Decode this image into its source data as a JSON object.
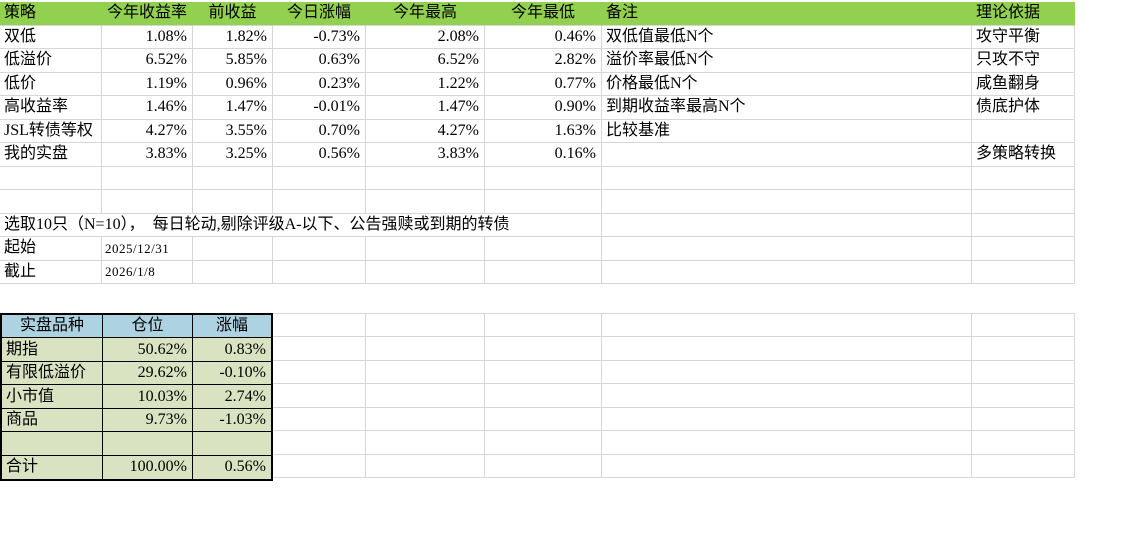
{
  "colors": {
    "header_green": "#92D050",
    "header_blue": "#ADD3E2",
    "body_green": "#D9E2C1",
    "gridline": "#D6D6D6"
  },
  "strategy_table": {
    "headers": [
      "策略",
      "今年收益率",
      "前收益",
      "今日涨幅",
      "今年最高",
      "今年最低",
      "备注",
      "理论依据"
    ],
    "rows": [
      [
        "双低",
        "1.08%",
        "1.82%",
        "-0.73%",
        "2.08%",
        "0.46%",
        "双低值最低N个",
        "攻守平衡"
      ],
      [
        "低溢价",
        "6.52%",
        "5.85%",
        "0.63%",
        "6.52%",
        "2.82%",
        "溢价率最低N个",
        "只攻不守"
      ],
      [
        "低价",
        "1.19%",
        "0.96%",
        "0.23%",
        "1.22%",
        "0.77%",
        "价格最低N个",
        "咸鱼翻身"
      ],
      [
        "高收益率",
        "1.46%",
        "1.47%",
        "-0.01%",
        "1.47%",
        "0.90%",
        "到期收益率最高N个",
        "债底护体"
      ],
      [
        "JSL转债等权",
        "4.27%",
        "3.55%",
        "0.70%",
        "4.27%",
        "1.63%",
        "比较基准",
        ""
      ],
      [
        "我的实盘",
        "3.83%",
        "3.25%",
        "0.56%",
        "3.83%",
        "0.16%",
        "",
        "多策略转换"
      ]
    ]
  },
  "selection_note": "选取10只（N=10），　每日轮动,剔除评级A-以下、公告强赎或到期的转债",
  "period": {
    "rows": [
      [
        "起始",
        "2025/12/31"
      ],
      [
        "截止",
        "2026/1/8"
      ]
    ]
  },
  "holdings_table": {
    "headers": [
      "实盘品种",
      "仓位",
      "涨幅"
    ],
    "rows": [
      [
        "期指",
        "50.62%",
        "0.83%"
      ],
      [
        "有限低溢价",
        "29.62%",
        "-0.10%"
      ],
      [
        "小市值",
        "10.03%",
        "2.74%"
      ],
      [
        "商品",
        "9.73%",
        "-1.03%"
      ],
      [
        "",
        "",
        ""
      ],
      [
        "合计",
        "100.00%",
        "0.56%"
      ]
    ]
  }
}
